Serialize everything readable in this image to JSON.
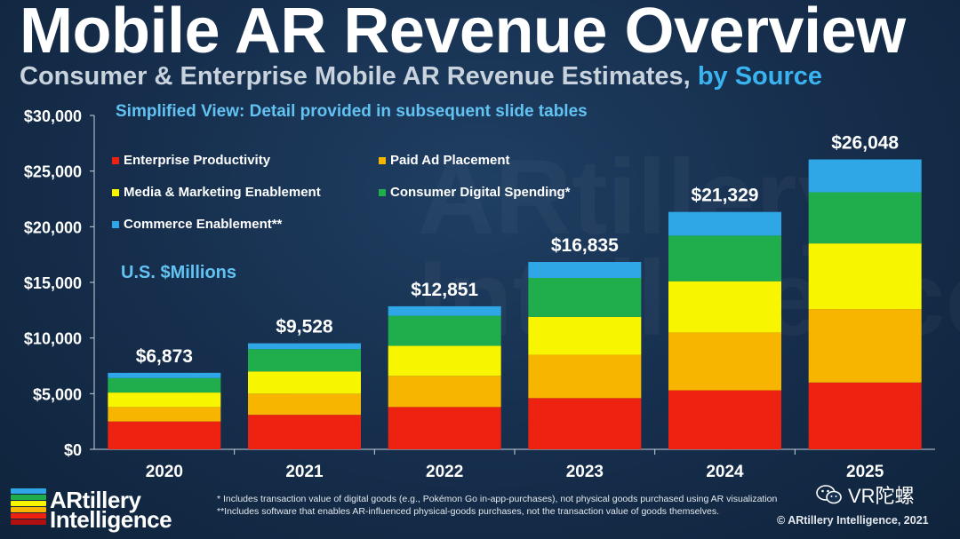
{
  "header": {
    "title": "Mobile AR Revenue Overview",
    "subtitle_main": "Consumer & Enterprise Mobile AR Revenue Estimates,",
    "subtitle_highlight": "by Source",
    "note": "Simplified View: Detail provided in subsequent slide tables",
    "units": "U.S. $Millions"
  },
  "colors": {
    "enterprise": "#ee2211",
    "paid_ad": "#f7b500",
    "media": "#f8f500",
    "consumer": "#1fae4b",
    "commerce": "#2fa6e6",
    "accent": "#3ab4f0"
  },
  "chart_data": {
    "type": "bar",
    "stacked": true,
    "categories": [
      "2020",
      "2021",
      "2022",
      "2023",
      "2024",
      "2025"
    ],
    "series": [
      {
        "name": "Enterprise Productivity",
        "color": "#ee2211",
        "values": [
          2500,
          3100,
          3800,
          4600,
          5300,
          6000
        ]
      },
      {
        "name": "Paid Ad Placement",
        "color": "#f7b500",
        "values": [
          1300,
          1900,
          2800,
          3900,
          5200,
          6600
        ]
      },
      {
        "name": "Media & Marketing Enablement",
        "color": "#f8f500",
        "values": [
          1300,
          2000,
          2700,
          3400,
          4600,
          5900
        ]
      },
      {
        "name": "Consumer Digital Spending*",
        "color": "#1fae4b",
        "values": [
          1300,
          2000,
          2700,
          3500,
          4100,
          4600
        ]
      },
      {
        "name": "Commerce Enablement**",
        "color": "#2fa6e6",
        "values": [
          473,
          528,
          851,
          1435,
          2129,
          2948
        ]
      }
    ],
    "totals": [
      "$6,873",
      "$9,528",
      "$12,851",
      "$16,835",
      "$21,329",
      "$26,048"
    ],
    "total_values": [
      6873,
      9528,
      12851,
      16835,
      21329,
      26048
    ],
    "ylim": [
      0,
      30000
    ],
    "yticks": [
      0,
      5000,
      10000,
      15000,
      20000,
      25000,
      30000
    ],
    "ytick_labels": [
      "$0",
      "$5,000",
      "$10,000",
      "$15,000",
      "$20,000",
      "$25,000",
      "$30,000"
    ],
    "grid": false,
    "legend_position": "top-left"
  },
  "footnotes": {
    "line1": "* Includes transaction value of digital goods (e.g., Pokémon Go in-app-purchases), not physical goods purchased using AR visualization",
    "line2": "**Includes software that enables AR-influenced physical-goods purchases, not the transaction value of goods themselves."
  },
  "logo": {
    "line1": "ARtillery",
    "line2": "Intelligence"
  },
  "copyright": "© ARtillery Intelligence, 2021",
  "watermark_badge": "VR陀螺"
}
